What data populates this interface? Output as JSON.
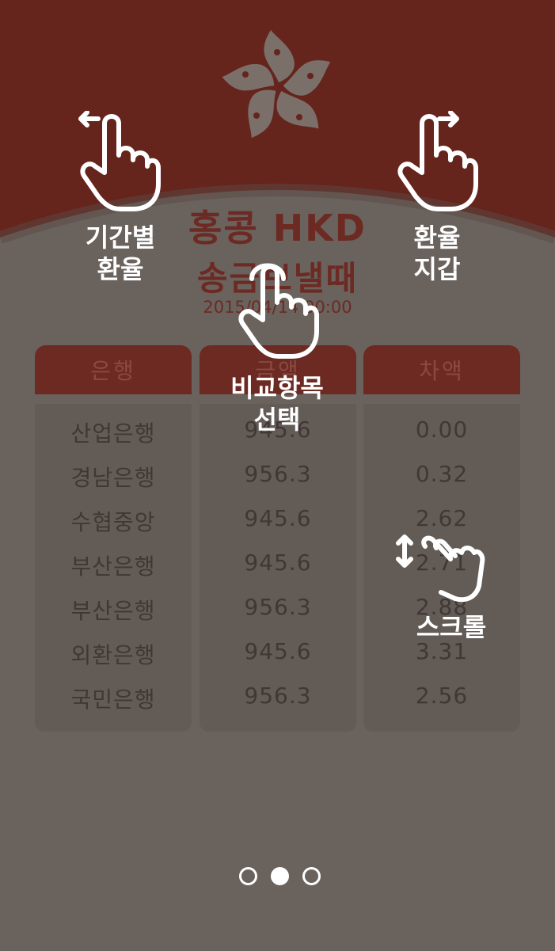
{
  "header": {
    "title": "홍콩 HKD",
    "subtitle": "송금보낼때",
    "date": "2015/04/14 00:00"
  },
  "table": {
    "columns": [
      "은행",
      "금액",
      "차액"
    ],
    "rows": [
      {
        "bank": "산업은행",
        "amount": "945.6",
        "diff": "0.00"
      },
      {
        "bank": "경남은행",
        "amount": "956.3",
        "diff": "0.32"
      },
      {
        "bank": "수협중앙",
        "amount": "945.6",
        "diff": "2.62"
      },
      {
        "bank": "부산은행",
        "amount": "945.6",
        "diff": "2.71"
      },
      {
        "bank": "부산은행",
        "amount": "956.3",
        "diff": "2.88"
      },
      {
        "bank": "외환은행",
        "amount": "945.6",
        "diff": "3.31"
      },
      {
        "bank": "국민은행",
        "amount": "956.3",
        "diff": "2.56"
      }
    ]
  },
  "hints": {
    "swipe_left": [
      "기간별",
      "환율"
    ],
    "swipe_right": [
      "환율",
      "지갑"
    ],
    "tap": [
      "비교항목",
      "선택"
    ],
    "scroll": [
      "스크롤"
    ]
  },
  "pagination": {
    "count": 3,
    "active": 1
  },
  "colors": {
    "header_bg": "#65241c",
    "overlay": "#6a625d",
    "accent": "#6c2a23",
    "emblem": "#7b6f69"
  },
  "icons": [
    "bauhinia-emblem-icon",
    "swipe-left-hand-icon",
    "swipe-right-hand-icon",
    "tap-hand-icon",
    "scroll-hand-icon"
  ]
}
